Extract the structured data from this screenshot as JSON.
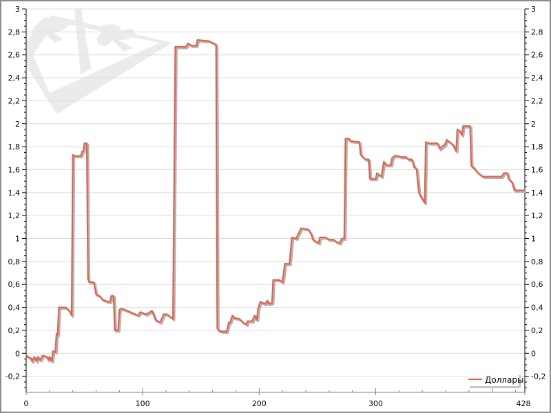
{
  "chart_data": {
    "type": "line",
    "title": "",
    "xlabel": "",
    "ylabel": "",
    "xlim": [
      0,
      428
    ],
    "ylim": [
      -0.34,
      3
    ],
    "grid": true,
    "x_tick_labels": [
      {
        "value": 0,
        "label": "0"
      },
      {
        "value": 100,
        "label": "100"
      },
      {
        "value": 200,
        "label": "200"
      },
      {
        "value": 300,
        "label": "300"
      },
      {
        "value": 428,
        "label": "428"
      }
    ],
    "y_tick_labels": [
      {
        "value": -0.2,
        "label": "-0,2"
      },
      {
        "value": 0,
        "label": "0"
      },
      {
        "value": 0.2,
        "label": "0,2"
      },
      {
        "value": 0.4,
        "label": "0,4"
      },
      {
        "value": 0.6,
        "label": "0,6"
      },
      {
        "value": 0.8,
        "label": "0,8"
      },
      {
        "value": 1,
        "label": "1"
      },
      {
        "value": 1.2,
        "label": "1,2"
      },
      {
        "value": 1.4,
        "label": "1,4"
      },
      {
        "value": 1.6,
        "label": "1,6"
      },
      {
        "value": 1.8,
        "label": "1,8"
      },
      {
        "value": 2,
        "label": "2"
      },
      {
        "value": 2.2,
        "label": "2,2"
      },
      {
        "value": 2.4,
        "label": "2,4"
      },
      {
        "value": 2.6,
        "label": "2,6"
      },
      {
        "value": 2.8,
        "label": "2,8"
      },
      {
        "value": 3,
        "label": "3"
      }
    ],
    "legend": {
      "position": "bottom-right"
    },
    "colors": {
      "line": "#e2624c",
      "shadow": "#b4b4b4",
      "grid": "#dcdcdc",
      "watermark": "#ebebeb"
    },
    "watermark_icons": [
      "spade-icon",
      "club-icon"
    ],
    "series": [
      {
        "name": "Доллары",
        "x": [
          0,
          1,
          4,
          5,
          7,
          9,
          10,
          12,
          14,
          18,
          19,
          20,
          22,
          23,
          25,
          26,
          27,
          28,
          34,
          37,
          39,
          40,
          41,
          47,
          48,
          49,
          50,
          52,
          53,
          54,
          58,
          60,
          63,
          65,
          70,
          72,
          73,
          75,
          76,
          79,
          80,
          82,
          87,
          96,
          98,
          103,
          108,
          111,
          115,
          118,
          121,
          126,
          128,
          137,
          139,
          142,
          146,
          147,
          157,
          159,
          163,
          164,
          165,
          168,
          172,
          174,
          175,
          177,
          178,
          183,
          186,
          189,
          190,
          194,
          196,
          198,
          199,
          201,
          205,
          207,
          208,
          211,
          212,
          217,
          220,
          222,
          226,
          228,
          232,
          233,
          236,
          242,
          245,
          246,
          251,
          252,
          257,
          260,
          264,
          266,
          269,
          271,
          273,
          274,
          277,
          278,
          286,
          287,
          291,
          294,
          295,
          300,
          301,
          305,
          307,
          309,
          313,
          314,
          316,
          319,
          322,
          326,
          328,
          331,
          333,
          335,
          337,
          339,
          342,
          343,
          346,
          353,
          355,
          358,
          359,
          361,
          366,
          369,
          370,
          372,
          374,
          375,
          381,
          382,
          384,
          386,
          388,
          392,
          408,
          410,
          413,
          414,
          417,
          419,
          428
        ],
        "y": [
          -0.01,
          -0.03,
          -0.04,
          -0.07,
          -0.03,
          -0.07,
          -0.03,
          -0.06,
          -0.02,
          -0.03,
          -0.06,
          -0.03,
          -0.07,
          0.02,
          0.01,
          0.17,
          0.16,
          0.4,
          0.4,
          0.37,
          0.33,
          1.73,
          1.72,
          1.72,
          1.76,
          1.76,
          1.83,
          1.83,
          0.65,
          0.62,
          0.62,
          0.51,
          0.5,
          0.47,
          0.45,
          0.45,
          0.5,
          0.5,
          0.2,
          0.2,
          0.38,
          0.39,
          0.37,
          0.33,
          0.36,
          0.34,
          0.37,
          0.29,
          0.27,
          0.34,
          0.34,
          0.3,
          2.67,
          2.67,
          2.7,
          2.68,
          2.68,
          2.73,
          2.72,
          2.71,
          2.69,
          0.22,
          0.2,
          0.19,
          0.19,
          0.27,
          0.27,
          0.33,
          0.31,
          0.3,
          0.27,
          0.25,
          0.28,
          0.28,
          0.33,
          0.29,
          0.39,
          0.45,
          0.43,
          0.46,
          0.43,
          0.44,
          0.64,
          0.64,
          0.62,
          0.78,
          0.78,
          1.01,
          1.0,
          1.03,
          1.09,
          1.08,
          1.03,
          0.99,
          0.96,
          1.01,
          1.01,
          0.99,
          0.99,
          0.97,
          0.96,
          1.0,
          1.0,
          1.87,
          1.87,
          1.85,
          1.84,
          1.73,
          1.69,
          1.69,
          1.52,
          1.52,
          1.57,
          1.54,
          1.67,
          1.64,
          1.64,
          1.7,
          1.72,
          1.72,
          1.71,
          1.71,
          1.69,
          1.69,
          1.62,
          1.61,
          1.4,
          1.36,
          1.31,
          1.84,
          1.83,
          1.83,
          1.78,
          1.81,
          1.81,
          1.86,
          1.82,
          1.76,
          1.95,
          1.94,
          1.9,
          1.98,
          1.98,
          1.63,
          1.62,
          1.59,
          1.57,
          1.54,
          1.54,
          1.57,
          1.57,
          1.52,
          1.49,
          1.42,
          1.42
        ]
      }
    ]
  }
}
